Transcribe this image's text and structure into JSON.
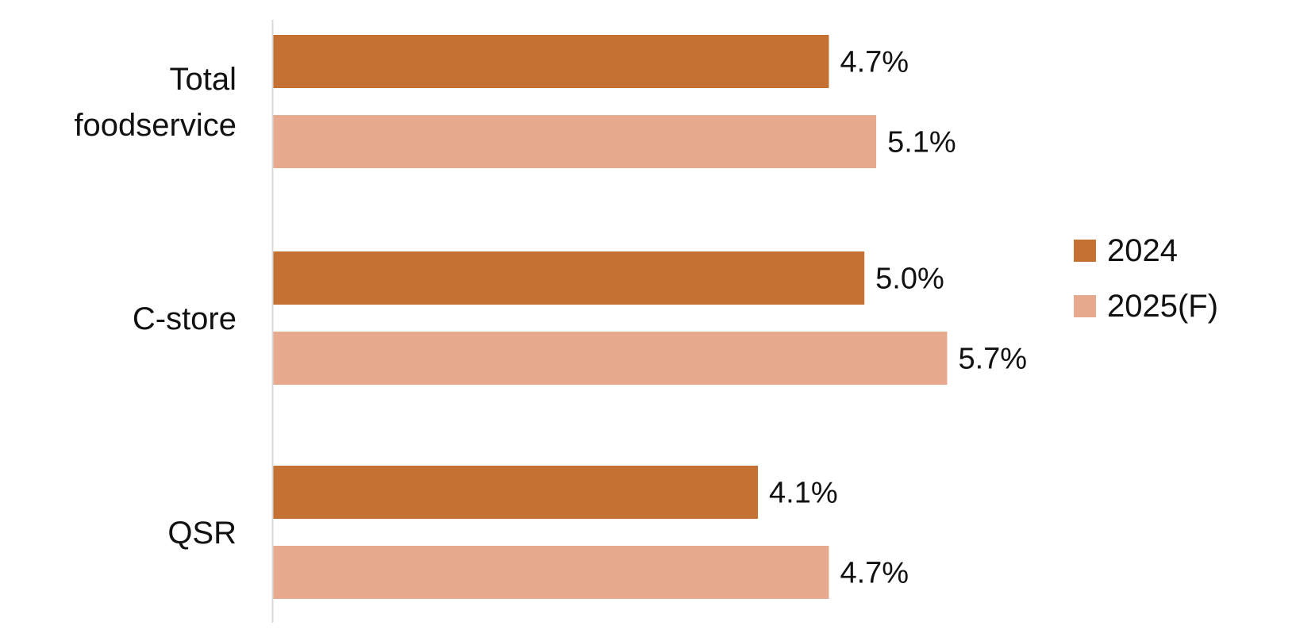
{
  "chart_data": {
    "type": "bar",
    "orientation": "horizontal",
    "categories": [
      [
        "Total",
        "foodservice"
      ],
      [
        "C-store"
      ],
      [
        "QSR"
      ]
    ],
    "series": [
      {
        "name": "2024",
        "color": "#C47133",
        "values": [
          4.7,
          5.0,
          4.1
        ]
      },
      {
        "name": "2025(F)",
        "color": "#E8AA8E",
        "values": [
          5.1,
          5.7,
          4.7
        ]
      }
    ],
    "value_labels": [
      [
        "4.7%",
        "5.0%",
        "4.1%"
      ],
      [
        "5.1%",
        "5.7%",
        "4.7%"
      ]
    ],
    "xlim": [
      0,
      6.2
    ],
    "grid": false,
    "legend_position": "right",
    "axis_line_color": "#D9D9D9"
  }
}
